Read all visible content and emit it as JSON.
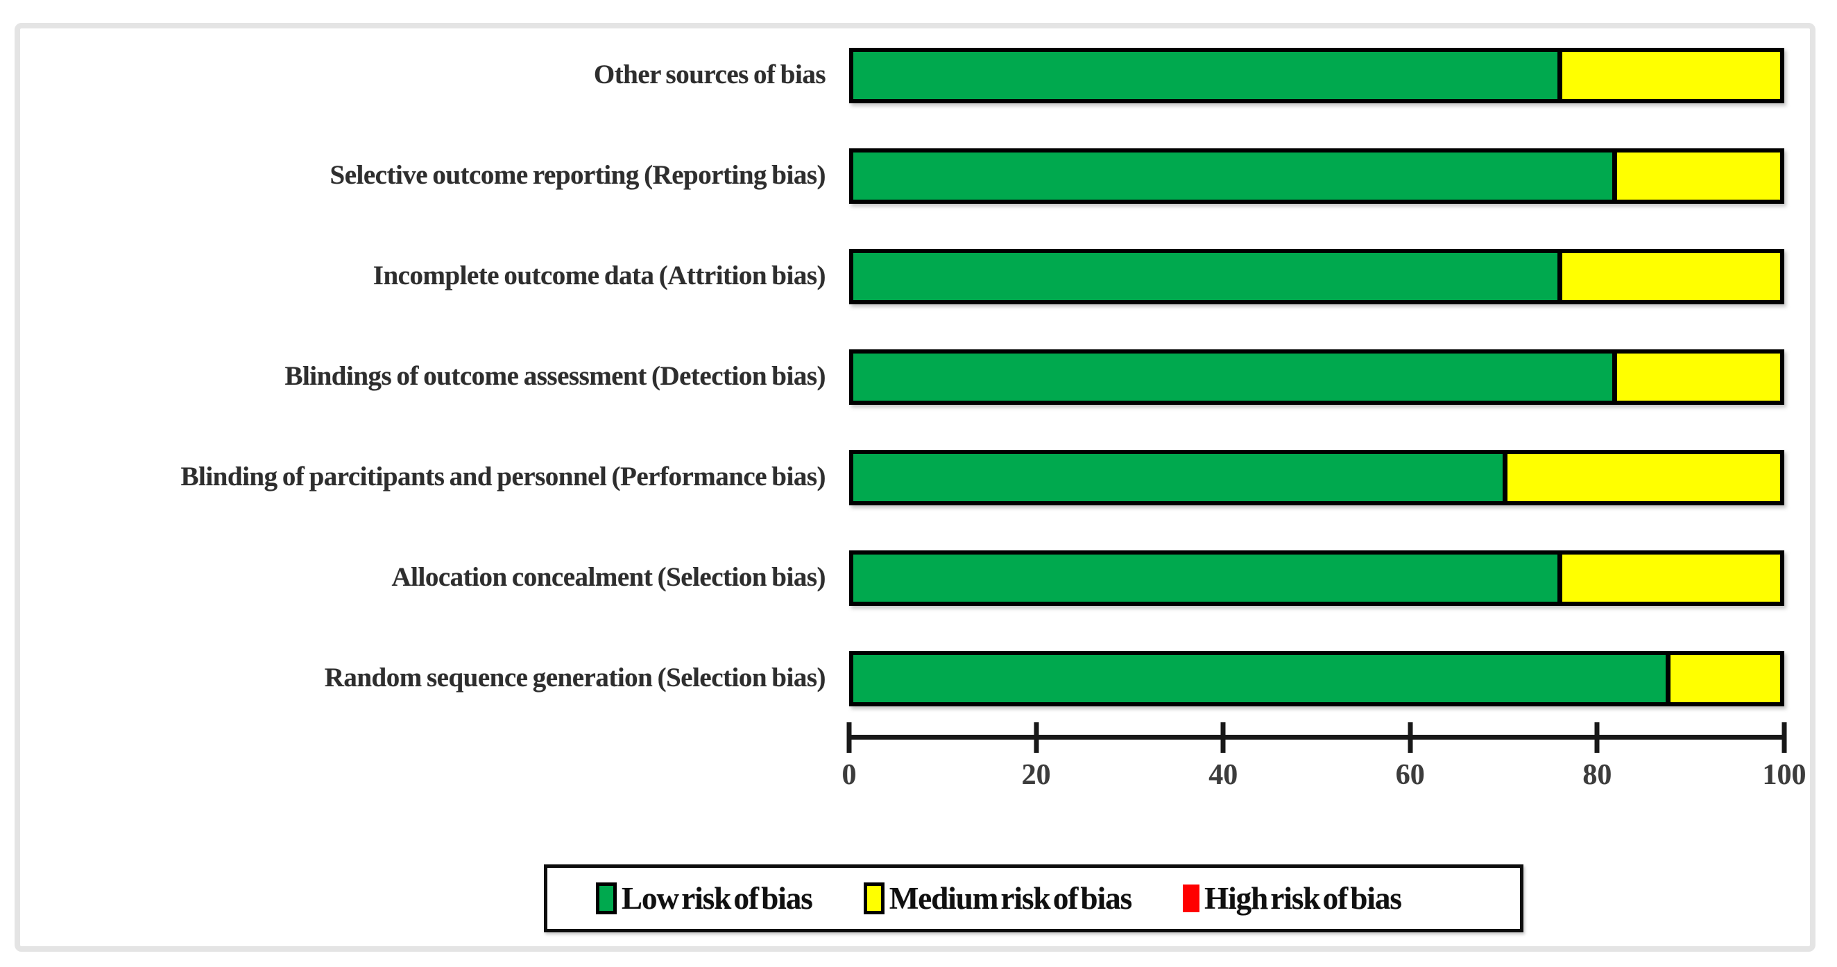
{
  "chart_data": {
    "type": "bar",
    "orientation": "horizontal",
    "stacked": true,
    "title": "",
    "xlabel": "",
    "ylabel": "",
    "categories": [
      "Other sources of bias",
      "Selective outcome reporting (Reporting bias)",
      "Incomplete outcome data (Attrition bias)",
      "Blindings of outcome assessment (Detection bias)",
      "Blinding of parcitipants and personnel (Performance bias)",
      "Allocation concealment (Selection bias)",
      "Random sequence generation (Selection bias)"
    ],
    "series": [
      {
        "name": "Low risk of bias",
        "color": "#00A94E",
        "values": [
          76.5,
          82.4,
          76.5,
          82.4,
          70.6,
          76.5,
          88.2
        ]
      },
      {
        "name": "Medium risk of bias",
        "color": "#FFFF00",
        "values": [
          23.5,
          17.6,
          23.5,
          17.6,
          29.4,
          23.5,
          11.8
        ]
      },
      {
        "name": "High risk of bias",
        "color": "#FF0000",
        "values": [
          0,
          0,
          0,
          0,
          0,
          0,
          0
        ]
      }
    ],
    "x_ticks": [
      0,
      20,
      40,
      60,
      80,
      100
    ],
    "xlim": [
      0,
      100
    ],
    "grid": false,
    "legend_position": "bottom"
  },
  "legend": {
    "items": [
      {
        "label": "Low risk of bias",
        "color": "#00A94E",
        "bordered": true
      },
      {
        "label": "Medium risk of bias",
        "color": "#FFFF00",
        "bordered": true
      },
      {
        "label": "High risk of bias",
        "color": "#FF0000",
        "bordered": false
      }
    ]
  },
  "colors": {
    "bar_outline": "#000000",
    "axis": "#181818",
    "frame_border": "#e4e4e4",
    "category_text": "#2e2e2e",
    "tick_text": "#3c3c3c",
    "legend_text": "#101010"
  }
}
